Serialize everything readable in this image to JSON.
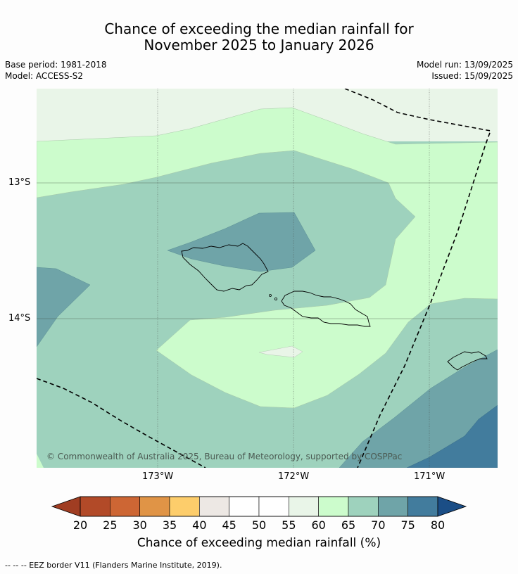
{
  "title": {
    "line1": "Chance of exceeding the median rainfall for",
    "line2": "November 2025 to January 2026"
  },
  "meta": {
    "base_period": "Base period: 1981-2018",
    "model": "Model: ACCESS-S2",
    "model_run": "Model run: 13/09/2025",
    "issued": "Issued: 15/09/2025"
  },
  "map": {
    "copyright": "© Commonwealth of Australia 2025, Bureau of Meteorology, supported by COSPPac",
    "lat_labels": [
      "13°S",
      "14°S"
    ],
    "lon_labels": [
      "173°W",
      "172°W",
      "171°W"
    ]
  },
  "colorbar": {
    "ticks": [
      "20",
      "25",
      "30",
      "35",
      "40",
      "45",
      "50",
      "55",
      "60",
      "65",
      "70",
      "75",
      "80"
    ],
    "colors": [
      "#b24a28",
      "#cd6634",
      "#e09446",
      "#fdcd6b",
      "#ede8e4",
      "#ffffff",
      "#ffffff",
      "#e9f5e8",
      "#ccfccc",
      "#9ed2bd",
      "#6fa4a8",
      "#427c9d"
    ],
    "under_color": "#a03d22",
    "over_color": "#1b4e86",
    "title": "Chance of exceeding median rainfall (%)"
  },
  "footnote": "--  --  -- EEZ border V11 (Flanders Marine Institute, 2019)."
}
